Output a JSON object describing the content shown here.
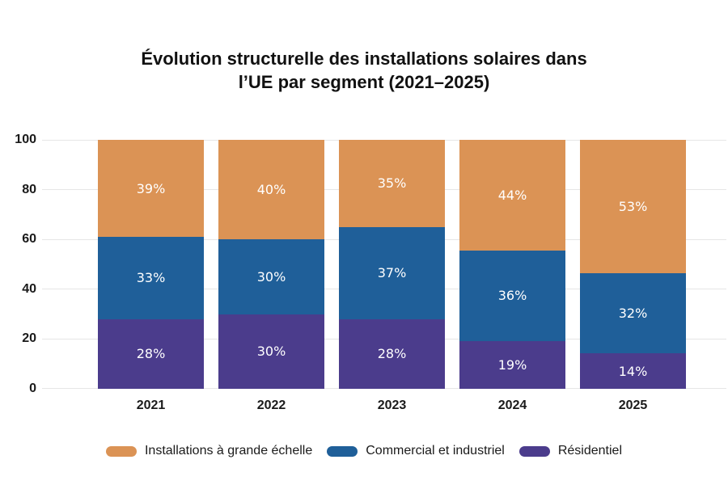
{
  "chart_data": {
    "type": "bar",
    "stacked": true,
    "title": "Évolution structurelle des installations solaires dans\nl’UE par segment (2021–2025)",
    "categories": [
      "2021",
      "2022",
      "2023",
      "2024",
      "2025"
    ],
    "stack_order": "bottom-to-top",
    "series": [
      {
        "key": "residentiel",
        "name": "Résidentiel",
        "color": "#4B3C8C",
        "values": [
          28,
          30,
          28,
          19,
          14
        ]
      },
      {
        "key": "commercial-industriel",
        "name": "Commercial et industriel",
        "color": "#1F5F99",
        "values": [
          33,
          30,
          37,
          36,
          32
        ]
      },
      {
        "key": "grande-echelle",
        "name": "Installations à grande échelle",
        "color": "#DB9355",
        "values": [
          39,
          40,
          35,
          44,
          53
        ]
      }
    ],
    "legend": [
      {
        "key": "grande-echelle",
        "label": "Installations à grande échelle",
        "color": "#DB9355"
      },
      {
        "key": "commercial-industriel",
        "label": "Commercial et industriel",
        "color": "#1F5F99"
      },
      {
        "key": "residentiel",
        "label": "Résidentiel",
        "color": "#4B3C8C"
      }
    ],
    "yticks": [
      0,
      20,
      40,
      60,
      80,
      100
    ],
    "ylim": [
      0,
      100
    ],
    "grid": true,
    "grid_color": "#E6E6E6",
    "legend_position": "bottom",
    "value_suffix": "%",
    "value_label_color": "#FFFFFF",
    "text_color": "#1A1A1A"
  }
}
